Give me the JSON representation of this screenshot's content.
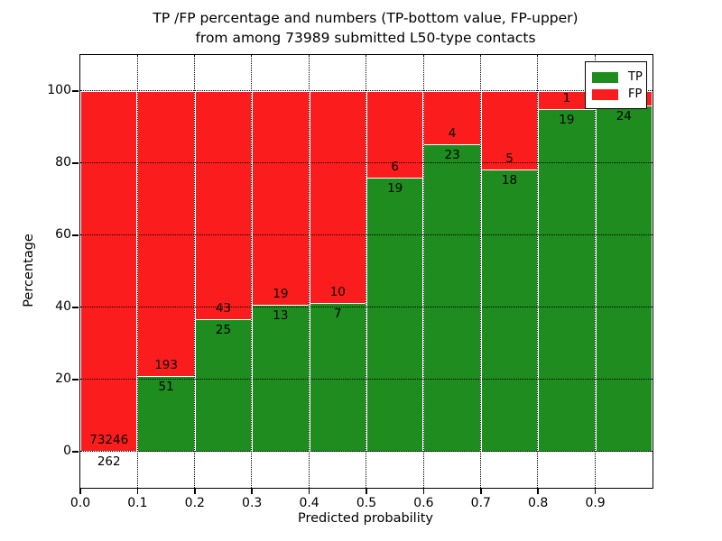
{
  "figure": {
    "title_line1": "TP /FP percentage and numbers (TP-bottom value, FP-upper)",
    "title_line2": "from among 73989 submitted L50-type contacts",
    "xlabel": "Predicted probability",
    "ylabel": "Percentage"
  },
  "legend": {
    "items": [
      {
        "label": "TP",
        "color": "#1e8c1e"
      },
      {
        "label": "FP",
        "color": "#fb1d1d"
      }
    ]
  },
  "chart_data": {
    "type": "bar",
    "subtype": "stacked-percentage",
    "title": "TP /FP percentage and numbers (TP-bottom value, FP-upper) from among 73989 submitted L50-type contacts",
    "xlabel": "Predicted probability",
    "ylabel": "Percentage",
    "x_ticks": [
      "0.0",
      "0.1",
      "0.2",
      "0.3",
      "0.4",
      "0.5",
      "0.6",
      "0.7",
      "0.8",
      "0.9"
    ],
    "y_ticks": [
      "0",
      "20",
      "40",
      "60",
      "80",
      "100"
    ],
    "y_tick_values": [
      0,
      20,
      40,
      60,
      80,
      100
    ],
    "xlim": [
      0.0,
      1.0
    ],
    "ylim": [
      -10,
      110
    ],
    "grid": true,
    "legend_position": "upper-right",
    "series": [
      {
        "name": "TP",
        "color": "#1e8c1e",
        "stack": "bottom"
      },
      {
        "name": "FP",
        "color": "#fb1d1d",
        "stack": "top"
      }
    ],
    "bars": [
      {
        "bin_start": 0.0,
        "bin_end": 0.1,
        "tp_count": 262,
        "fp_count": 73246,
        "tp_pct": 0.36,
        "fp_pct": 99.64,
        "tp_label": "262",
        "fp_label": "73246"
      },
      {
        "bin_start": 0.1,
        "bin_end": 0.2,
        "tp_count": 51,
        "fp_count": 193,
        "tp_pct": 20.9,
        "fp_pct": 79.1,
        "tp_label": "51",
        "fp_label": "193"
      },
      {
        "bin_start": 0.2,
        "bin_end": 0.3,
        "tp_count": 25,
        "fp_count": 43,
        "tp_pct": 36.76,
        "fp_pct": 63.24,
        "tp_label": "25",
        "fp_label": "43"
      },
      {
        "bin_start": 0.3,
        "bin_end": 0.4,
        "tp_count": 13,
        "fp_count": 19,
        "tp_pct": 40.63,
        "fp_pct": 59.37,
        "tp_label": "13",
        "fp_label": "19"
      },
      {
        "bin_start": 0.4,
        "bin_end": 0.5,
        "tp_count": 7,
        "fp_count": 10,
        "tp_pct": 41.18,
        "fp_pct": 58.82,
        "tp_label": "7",
        "fp_label": "10"
      },
      {
        "bin_start": 0.5,
        "bin_end": 0.6,
        "tp_count": 19,
        "fp_count": 6,
        "tp_pct": 76.0,
        "fp_pct": 24.0,
        "tp_label": "19",
        "fp_label": "6"
      },
      {
        "bin_start": 0.6,
        "bin_end": 0.7,
        "tp_count": 23,
        "fp_count": 4,
        "tp_pct": 85.19,
        "fp_pct": 14.81,
        "tp_label": "23",
        "fp_label": "4"
      },
      {
        "bin_start": 0.7,
        "bin_end": 0.8,
        "tp_count": 18,
        "fp_count": 5,
        "tp_pct": 78.26,
        "fp_pct": 21.74,
        "tp_label": "18",
        "fp_label": "5"
      },
      {
        "bin_start": 0.8,
        "bin_end": 0.9,
        "tp_count": 19,
        "fp_count": 1,
        "tp_pct": 95.0,
        "fp_pct": 5.0,
        "tp_label": "19",
        "fp_label": "1"
      },
      {
        "bin_start": 0.9,
        "bin_end": 1.0,
        "tp_count": 24,
        "tp_pct": 96.0,
        "fp_pct": 4.0,
        "tp_label": "24",
        "fp_label": ""
      }
    ]
  }
}
